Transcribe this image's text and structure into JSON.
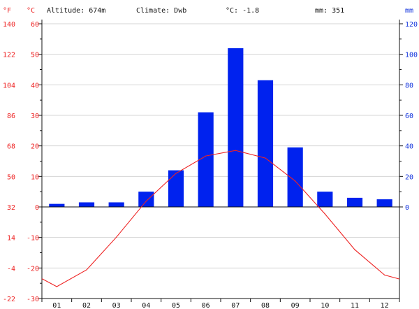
{
  "header": {
    "unit_f": "°F",
    "unit_c": "°C",
    "altitude": "Altitude: 674m",
    "climate": "Climate: Dwb",
    "temp_avg": "°C: -1.8",
    "precip_total": "mm: 351",
    "unit_mm": "mm"
  },
  "colors": {
    "temperature_line": "#ee2222",
    "precip_bar": "#0022ee",
    "grid": "#d4d4d4",
    "axis": "#111111",
    "left_labels": "#ee2222",
    "right_labels": "#1133dd"
  },
  "chart_data": {
    "type": "bar",
    "categories": [
      "01",
      "02",
      "03",
      "04",
      "05",
      "06",
      "07",
      "08",
      "09",
      "10",
      "11",
      "12"
    ],
    "series": [
      {
        "type": "bar",
        "axis": "precip_mm",
        "values": [
          2,
          3,
          3,
          10,
          24,
          62,
          104,
          83,
          39,
          10,
          6,
          5
        ]
      },
      {
        "type": "line",
        "axis": "temp_c",
        "values": [
          -26.1,
          -20.6,
          -9.9,
          1.9,
          11.0,
          16.7,
          18.5,
          16.0,
          8.5,
          -2.3,
          -14.0,
          -22.3
        ],
        "start_value": -23.5,
        "end_value": -23.6
      }
    ],
    "axes": {
      "temp_c": {
        "range": [
          -30,
          60
        ],
        "ticks": [
          "60",
          "50",
          "40",
          "30",
          "20",
          "10",
          "0",
          "-10",
          "-20",
          "-30"
        ]
      },
      "temp_f": {
        "ticks": [
          "140",
          "122",
          "104",
          "86",
          "68",
          "50",
          "32",
          "14",
          "-4",
          "-22"
        ]
      },
      "precip_mm": {
        "range": [
          0,
          120
        ],
        "ticks": [
          "120",
          "100",
          "80",
          "60",
          "40",
          "20",
          "0"
        ]
      }
    },
    "grid": true
  }
}
